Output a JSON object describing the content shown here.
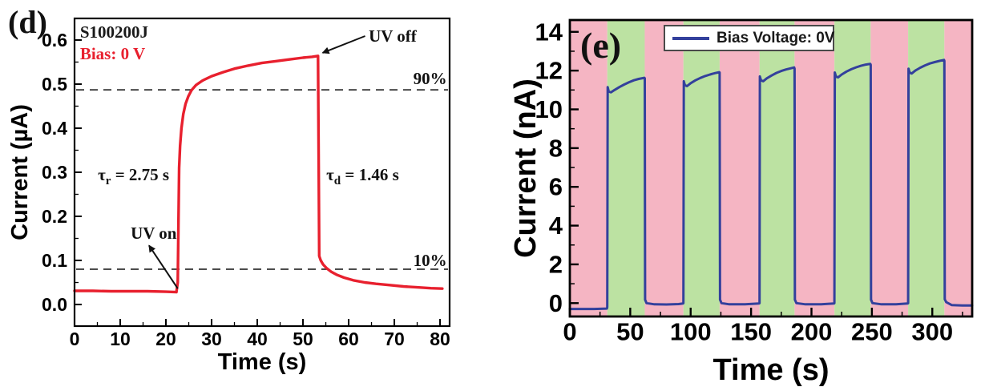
{
  "colors": {
    "curve_d": "#e8202e",
    "curve_e": "#33409c",
    "band_uv_on": "#bce2a2",
    "band_uv_off": "#f5b5c3",
    "dashed_line": "#333333",
    "frame": "#000000",
    "annotation_text": "#111111",
    "bias_text_red": "#e8202e"
  },
  "chart_data": [
    {
      "type": "line",
      "panel": "d",
      "panel_label": "(d)",
      "xlabel": "Time (s)",
      "ylabel": "Current (µA)",
      "xlim": [
        0,
        82.1
      ],
      "ylim": [
        -0.049,
        0.649
      ],
      "xticks": [
        0,
        10,
        20,
        30,
        40,
        50,
        60,
        70,
        80
      ],
      "xtick_labels": [
        "0",
        "10",
        "20",
        "30",
        "40",
        "50",
        "60",
        "70",
        "80"
      ],
      "x_minor_step": 5,
      "yticks": [
        0.0,
        0.1,
        0.2,
        0.3,
        0.4,
        0.5,
        0.6
      ],
      "ytick_labels": [
        "0.0",
        "0.1",
        "0.2",
        "0.3",
        "0.4",
        "0.5",
        "0.6"
      ],
      "y_minor_step": 0.05,
      "grid": false,
      "uv_on_time_s": 22.6,
      "uv_off_time_s": 53.3,
      "rise_time_s": 2.75,
      "decay_time_s": 1.46,
      "dashed_lines": [
        {
          "id": "ninety-percent-line",
          "y": 0.487
        },
        {
          "id": "ten-percent-line",
          "y": 0.08
        }
      ],
      "series": [
        {
          "name": "photoresponse-0V",
          "color": "#e8202e",
          "width": 3.4,
          "points": [
            [
              0,
              0.031
            ],
            [
              4,
              0.031
            ],
            [
              8,
              0.03
            ],
            [
              12,
              0.03
            ],
            [
              16,
              0.03
            ],
            [
              20,
              0.029
            ],
            [
              22.3,
              0.028
            ],
            [
              22.6,
              0.05
            ],
            [
              22.75,
              0.19
            ],
            [
              22.9,
              0.31
            ],
            [
              23.1,
              0.36
            ],
            [
              23.4,
              0.4
            ],
            [
              23.8,
              0.432
            ],
            [
              24.3,
              0.455
            ],
            [
              24.9,
              0.472
            ],
            [
              25.6,
              0.486
            ],
            [
              26.6,
              0.498
            ],
            [
              28,
              0.508
            ],
            [
              30,
              0.518
            ],
            [
              32.5,
              0.527
            ],
            [
              35,
              0.535
            ],
            [
              38,
              0.542
            ],
            [
              41,
              0.548
            ],
            [
              44,
              0.552
            ],
            [
              47,
              0.556
            ],
            [
              50,
              0.56
            ],
            [
              52,
              0.562
            ],
            [
              53.3,
              0.564
            ],
            [
              53.45,
              0.3
            ],
            [
              53.55,
              0.11
            ],
            [
              53.9,
              0.1
            ],
            [
              54.4,
              0.091
            ],
            [
              55.2,
              0.082
            ],
            [
              56.2,
              0.074
            ],
            [
              57.5,
              0.067
            ],
            [
              59,
              0.061
            ],
            [
              61,
              0.055
            ],
            [
              63.5,
              0.05
            ],
            [
              66,
              0.047
            ],
            [
              69,
              0.044
            ],
            [
              72,
              0.041
            ],
            [
              75,
              0.039
            ],
            [
              78,
              0.037
            ],
            [
              80.5,
              0.036
            ]
          ]
        }
      ],
      "annotations": [
        {
          "id": "sample-id",
          "text": "S100200J",
          "x": 1.2,
          "y": 0.605,
          "anchor": "start",
          "color": "#1a1a1a"
        },
        {
          "id": "bias-label",
          "text": "Bias: 0 V",
          "x": 1.2,
          "y": 0.556,
          "anchor": "start",
          "color": "#e8202e"
        },
        {
          "id": "uv-off-label",
          "text": "UV off",
          "x": 64.4,
          "y": 0.596,
          "anchor": "start",
          "color": "#111111",
          "arrow": {
            "from": [
              63.6,
              0.609
            ],
            "to": [
              54.3,
              0.571
            ]
          }
        },
        {
          "id": "uv-on-label",
          "text": "UV on",
          "x": 12.3,
          "y": 0.149,
          "anchor": "start",
          "color": "#111111",
          "arrow": {
            "from": [
              22.6,
              0.036
            ],
            "to": [
              16.3,
              0.134
            ]
          }
        },
        {
          "id": "ninety-percent-label",
          "text": "90%",
          "x": 81.5,
          "y": 0.5,
          "anchor": "end",
          "color": "#111111"
        },
        {
          "id": "ten-percent-label",
          "text": "10%",
          "x": 81.5,
          "y": 0.0873,
          "anchor": "end",
          "color": "#111111"
        },
        {
          "id": "rise-time-label",
          "parts": [
            {
              "t": "τ"
            },
            {
              "t": "r",
              "sub": true
            },
            {
              "t": " = 2.75 s"
            }
          ],
          "x": 5.1,
          "y": 0.282,
          "anchor": "start",
          "color": "#111111"
        },
        {
          "id": "decay-time-label",
          "parts": [
            {
              "t": "τ"
            },
            {
              "t": "d",
              "sub": true
            },
            {
              "t": " = 1.46 s"
            }
          ],
          "x": 55.1,
          "y": 0.282,
          "anchor": "start",
          "color": "#111111"
        }
      ]
    },
    {
      "type": "line",
      "panel": "e",
      "panel_label": "(e)",
      "xlabel": "Time (s)",
      "ylabel": "Current (nA)",
      "xlim": [
        0,
        333
      ],
      "ylim": [
        -0.69,
        14.61
      ],
      "xticks": [
        0,
        50,
        100,
        150,
        200,
        250,
        300
      ],
      "xtick_labels": [
        "0",
        "50",
        "100",
        "150",
        "200",
        "250",
        "300"
      ],
      "x_minor_step": 25,
      "yticks": [
        0,
        2,
        4,
        6,
        8,
        10,
        12,
        14
      ],
      "ytick_labels": [
        "0",
        "2",
        "4",
        "6",
        "8",
        "10",
        "12",
        "14"
      ],
      "y_minor_step": 1,
      "grid": false,
      "legend": {
        "label": "Bias Voltage: 0V",
        "line_color": "#33409c"
      },
      "bands": {
        "on_color": "#bce2a2",
        "off_color": "#f5b5c3",
        "intervals": [
          {
            "x0": 0,
            "x1": 31,
            "state": "off"
          },
          {
            "x0": 31,
            "x1": 62,
            "state": "on"
          },
          {
            "x0": 62,
            "x1": 94,
            "state": "off"
          },
          {
            "x0": 94,
            "x1": 124,
            "state": "on"
          },
          {
            "x0": 124,
            "x1": 157,
            "state": "off"
          },
          {
            "x0": 157,
            "x1": 186,
            "state": "on"
          },
          {
            "x0": 186,
            "x1": 219,
            "state": "off"
          },
          {
            "x0": 219,
            "x1": 249,
            "state": "on"
          },
          {
            "x0": 249,
            "x1": 280,
            "state": "off"
          },
          {
            "x0": 280,
            "x1": 310,
            "state": "on"
          },
          {
            "x0": 310,
            "x1": 333,
            "state": "off"
          }
        ]
      },
      "pulses": [
        {
          "on": 31,
          "off": 62,
          "i_start_nA": 11.15,
          "i_end_nA": 11.63
        },
        {
          "on": 94,
          "off": 124,
          "i_start_nA": 11.45,
          "i_end_nA": 11.92
        },
        {
          "on": 157,
          "off": 186,
          "i_start_nA": 11.7,
          "i_end_nA": 12.16
        },
        {
          "on": 219,
          "off": 249,
          "i_start_nA": 11.9,
          "i_end_nA": 12.35
        },
        {
          "on": 280,
          "off": 310,
          "i_start_nA": 12.1,
          "i_end_nA": 12.55
        }
      ],
      "series": [
        {
          "name": "photocurrent-0V-bias",
          "color": "#33409c",
          "width": 3,
          "points": [
            [
              0,
              -0.3
            ],
            [
              20,
              -0.3
            ],
            [
              30.7,
              -0.28
            ],
            [
              31,
              -0.2
            ],
            [
              31.3,
              11.15
            ],
            [
              32.2,
              10.92
            ],
            [
              34,
              10.88
            ],
            [
              37,
              11.0
            ],
            [
              41,
              11.15
            ],
            [
              45,
              11.28
            ],
            [
              49,
              11.4
            ],
            [
              53,
              11.5
            ],
            [
              57,
              11.57
            ],
            [
              61.7,
              11.63
            ],
            [
              62,
              11.6
            ],
            [
              62.3,
              0.18
            ],
            [
              63.5,
              0.0
            ],
            [
              70,
              -0.06
            ],
            [
              80,
              -0.07
            ],
            [
              90,
              -0.05
            ],
            [
              93.7,
              -0.02
            ],
            [
              94,
              0.0
            ],
            [
              94.3,
              11.45
            ],
            [
              95.2,
              11.25
            ],
            [
              97,
              11.2
            ],
            [
              100,
              11.35
            ],
            [
              104,
              11.5
            ],
            [
              108,
              11.62
            ],
            [
              112,
              11.72
            ],
            [
              116,
              11.8
            ],
            [
              120,
              11.87
            ],
            [
              123.7,
              11.92
            ],
            [
              124,
              11.9
            ],
            [
              124.3,
              0.18
            ],
            [
              125.5,
              0.0
            ],
            [
              132,
              -0.06
            ],
            [
              145,
              -0.06
            ],
            [
              156.7,
              -0.02
            ],
            [
              157,
              0.0
            ],
            [
              157.3,
              11.7
            ],
            [
              158.2,
              11.5
            ],
            [
              160,
              11.45
            ],
            [
              163,
              11.6
            ],
            [
              167,
              11.75
            ],
            [
              171,
              11.88
            ],
            [
              175,
              11.98
            ],
            [
              179,
              12.06
            ],
            [
              183,
              12.12
            ],
            [
              185.7,
              12.16
            ],
            [
              186,
              12.1
            ],
            [
              186.3,
              0.18
            ],
            [
              187.5,
              0.0
            ],
            [
              195,
              -0.06
            ],
            [
              208,
              -0.06
            ],
            [
              218.7,
              -0.02
            ],
            [
              219,
              0.0
            ],
            [
              219.3,
              11.9
            ],
            [
              220.2,
              11.7
            ],
            [
              222,
              11.65
            ],
            [
              225,
              11.8
            ],
            [
              229,
              11.95
            ],
            [
              233,
              12.07
            ],
            [
              237,
              12.17
            ],
            [
              241,
              12.25
            ],
            [
              245,
              12.31
            ],
            [
              248.7,
              12.35
            ],
            [
              249,
              12.3
            ],
            [
              249.3,
              0.18
            ],
            [
              250.5,
              0.0
            ],
            [
              258,
              -0.06
            ],
            [
              270,
              -0.06
            ],
            [
              279.7,
              -0.02
            ],
            [
              280,
              0.0
            ],
            [
              280.3,
              12.1
            ],
            [
              281.2,
              11.9
            ],
            [
              283,
              11.85
            ],
            [
              286,
              12.0
            ],
            [
              290,
              12.15
            ],
            [
              294,
              12.27
            ],
            [
              298,
              12.37
            ],
            [
              302,
              12.44
            ],
            [
              306,
              12.5
            ],
            [
              309.7,
              12.55
            ],
            [
              310,
              12.5
            ],
            [
              310.3,
              0.2
            ],
            [
              311.5,
              0.05
            ],
            [
              316,
              -0.1
            ],
            [
              325,
              -0.12
            ],
            [
              333,
              -0.12
            ]
          ]
        }
      ],
      "annotations": []
    }
  ]
}
